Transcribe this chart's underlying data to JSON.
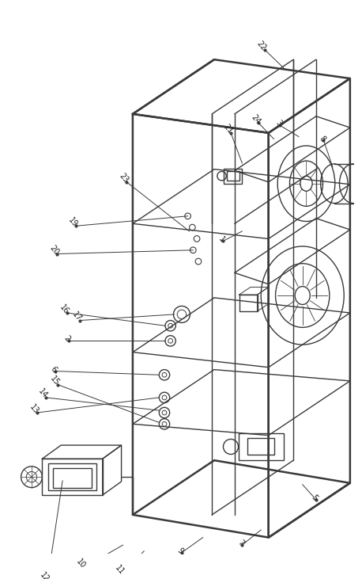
{
  "bg_color": "#ffffff",
  "line_color": "#3a3a3a",
  "line_width": 1.0,
  "label_fontsize": 7.0,
  "label_color": "#222222"
}
